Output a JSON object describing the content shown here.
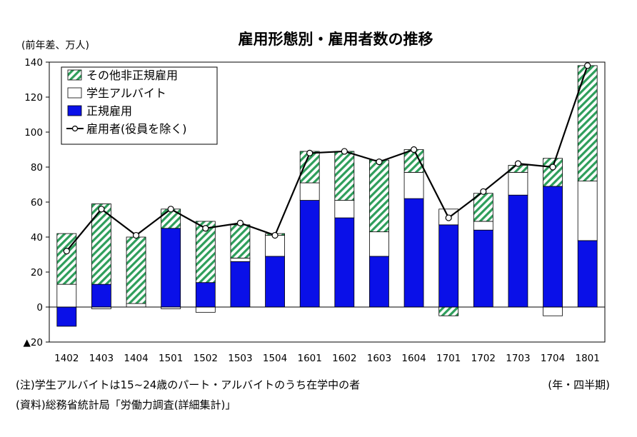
{
  "chart_data": {
    "type": "bar",
    "title": "雇用形態別・雇用者数の推移",
    "ylabel": "(前年差、万人)",
    "xlabel": "(年・四半期)",
    "ylim": [
      -20,
      140
    ],
    "yticks": [
      140,
      120,
      100,
      80,
      60,
      40,
      20,
      0,
      -20
    ],
    "ytick_labels": [
      "140",
      "120",
      "100",
      "80",
      "60",
      "40",
      "20",
      "0",
      "▲20"
    ],
    "categories": [
      "1402",
      "1403",
      "1404",
      "1501",
      "1502",
      "1503",
      "1504",
      "1601",
      "1602",
      "1603",
      "1604",
      "1701",
      "1702",
      "1703",
      "1704",
      "1801"
    ],
    "series": [
      {
        "name": "正規雇用",
        "kind": "bar",
        "color": "#0a10e8",
        "values": [
          -11,
          13,
          0,
          45,
          14,
          26,
          29,
          61,
          51,
          29,
          62,
          47,
          44,
          64,
          69,
          38
        ]
      },
      {
        "name": "学生アルバイト",
        "kind": "bar",
        "color": "#ffffff",
        "values": [
          13,
          -1,
          2,
          -1,
          -3,
          2,
          12,
          10,
          10,
          14,
          15,
          9,
          5,
          13,
          -5,
          34
        ]
      },
      {
        "name": "その他非正規雇用",
        "kind": "bar",
        "color": "#2e9e5b",
        "pattern": "diagonal-hatch",
        "values": [
          29,
          46,
          38,
          11,
          35,
          19,
          1,
          18,
          28,
          41,
          13,
          -5,
          16,
          4,
          16,
          66
        ]
      },
      {
        "name": "雇用者(役員を除く)",
        "kind": "line",
        "color": "#000000",
        "values": [
          32,
          56,
          41,
          56,
          45,
          48,
          41,
          88,
          89,
          83,
          90,
          51,
          66,
          82,
          80,
          138
        ]
      }
    ],
    "legend": {
      "position": "top-left"
    },
    "grid": false
  },
  "notes": {
    "note1": "(注)学生アルバイトは15~24歳のパート・アルバイトのうち在学中の者",
    "note2": "(資料)総務省統計局「労働力調査(詳細集計)」"
  }
}
